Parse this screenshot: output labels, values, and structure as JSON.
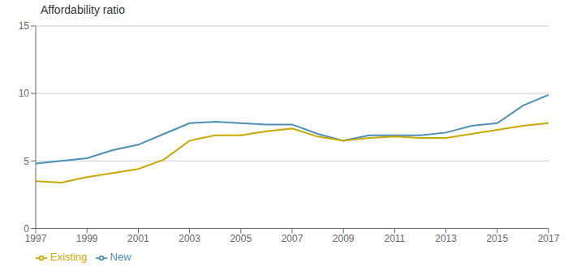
{
  "chart_data": {
    "type": "line",
    "title": "Affordability ratio",
    "x": [
      1997,
      1998,
      1999,
      2000,
      2001,
      2002,
      2003,
      2004,
      2005,
      2006,
      2007,
      2008,
      2009,
      2010,
      2011,
      2012,
      2013,
      2014,
      2015,
      2016,
      2017
    ],
    "series": [
      {
        "name": "New",
        "color": "#4a8fb5",
        "values": [
          4.8,
          5.0,
          5.2,
          5.8,
          6.2,
          7.0,
          7.8,
          7.9,
          7.8,
          7.7,
          7.7,
          7.0,
          6.5,
          6.9,
          6.9,
          6.9,
          7.1,
          7.6,
          7.8,
          9.1,
          9.9
        ]
      },
      {
        "name": "Existing",
        "color": "#c9a800",
        "values": [
          3.5,
          3.4,
          3.8,
          4.1,
          4.4,
          5.1,
          6.5,
          6.9,
          6.9,
          7.2,
          7.4,
          6.8,
          6.5,
          6.7,
          6.8,
          6.7,
          6.7,
          7.0,
          7.3,
          7.6,
          7.8
        ]
      }
    ],
    "xlim": [
      1997,
      2017
    ],
    "ylim": [
      0,
      15
    ],
    "xticks": [
      1997,
      1999,
      2001,
      2003,
      2005,
      2007,
      2009,
      2011,
      2013,
      2015,
      2017
    ],
    "yticks": [
      0,
      5,
      10,
      15
    ],
    "grid": "y",
    "legend": "bottom"
  }
}
